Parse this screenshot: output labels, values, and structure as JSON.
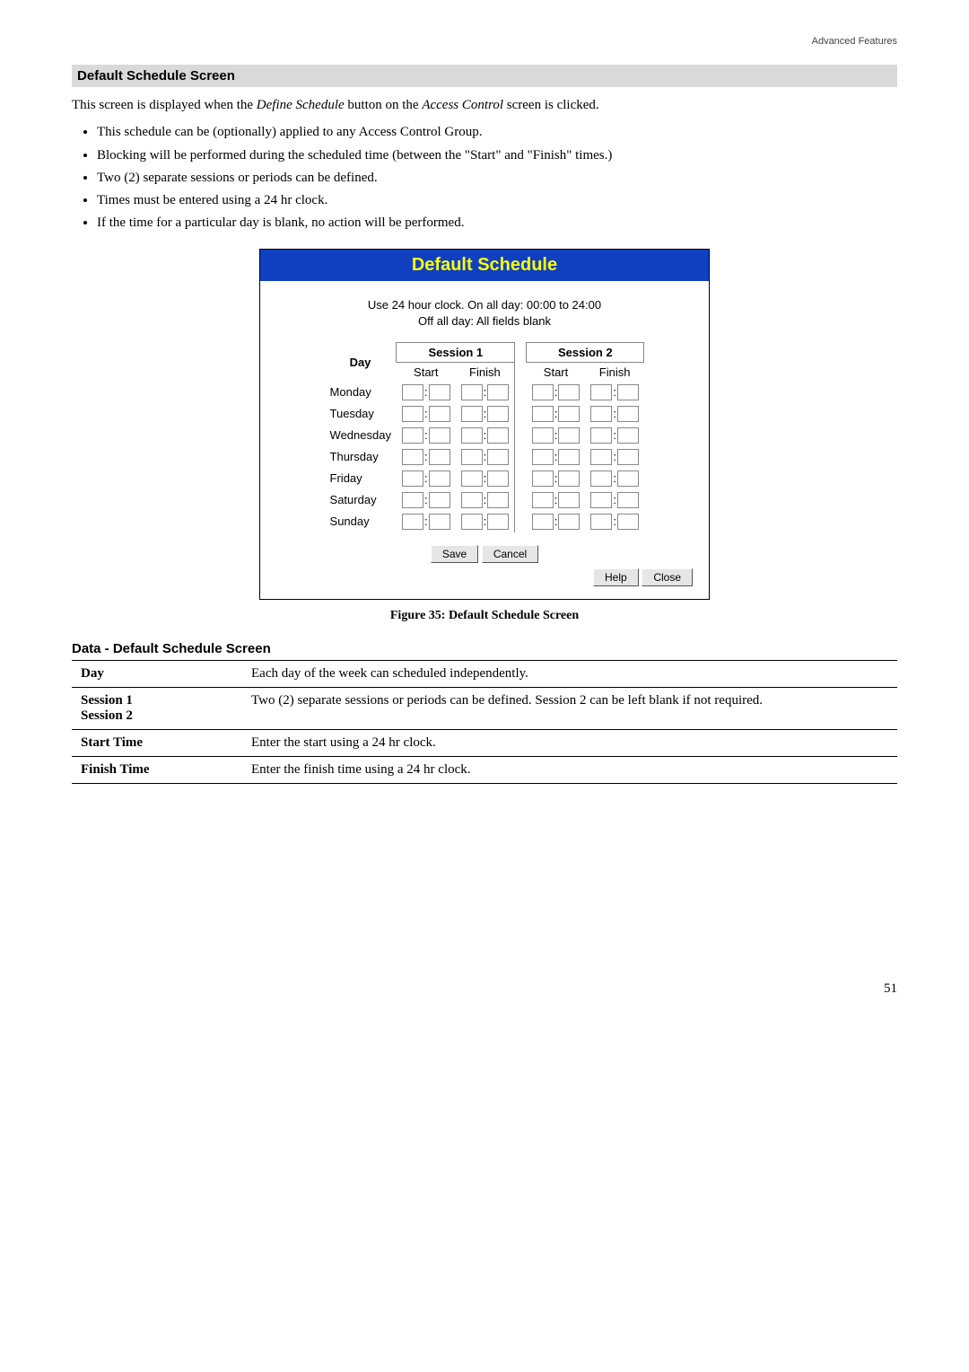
{
  "header_right": "Advanced Features",
  "section_title": "Default Schedule Screen",
  "intro_prefix": "This screen is displayed when the ",
  "intro_em1": "Define Schedule",
  "intro_mid": " button on the ",
  "intro_em2": "Access Control",
  "intro_suffix": " screen is clicked.",
  "bullets": [
    "This schedule can be (optionally) applied to any Access Control Group.",
    "Blocking will be performed during the scheduled time (between the \"Start\" and \"Finish\" times.)",
    "Two (2) separate sessions or periods can be defined.",
    "Times must be entered using a 24 hr clock.",
    "If the time for a particular day is blank, no action will be performed."
  ],
  "panel": {
    "title": "Default Schedule",
    "hint_line1": "Use 24 hour clock.   On all day: 00:00 to 24:00",
    "hint_line2": "Off all day: All fields blank",
    "day_header": "Day",
    "session1": "Session 1",
    "session2": "Session 2",
    "start": "Start",
    "finish": "Finish",
    "days": [
      "Monday",
      "Tuesday",
      "Wednesday",
      "Thursday",
      "Friday",
      "Saturday",
      "Sunday"
    ],
    "save": "Save",
    "cancel": "Cancel",
    "help": "Help",
    "close": "Close"
  },
  "caption": "Figure 35: Default Schedule Screen",
  "data_heading": "Data - Default Schedule Screen",
  "rows": {
    "day_label": "Day",
    "day_desc": "Each day of the week can scheduled independently.",
    "sess_label1": "Session 1",
    "sess_label2": "Session 2",
    "sess_desc": "Two (2) separate sessions or periods can be defined. Session 2 can be left blank if not required.",
    "start_label": "Start Time",
    "start_desc": "Enter the start using a 24 hr clock.",
    "finish_label": "Finish Time",
    "finish_desc": "Enter the finish time using a 24 hr clock."
  },
  "page_number": "51"
}
